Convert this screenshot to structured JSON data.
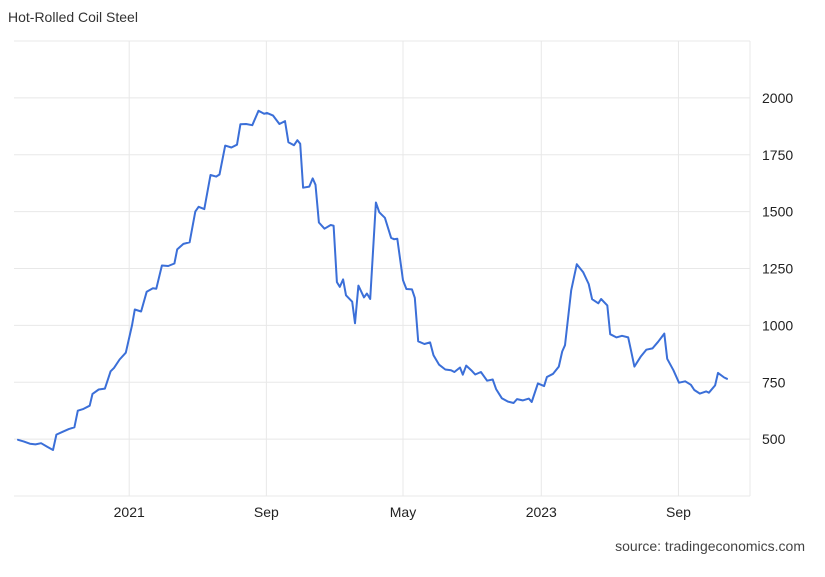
{
  "chart_data": {
    "type": "line",
    "title": "Hot-Rolled Coil Steel",
    "xlabel": "",
    "ylabel": "",
    "source": "source: tradingeconomics.com",
    "ylim": [
      250,
      2250
    ],
    "y_ticks": [
      500,
      750,
      1000,
      1250,
      1500,
      1750,
      2000
    ],
    "x_tick_labels": [
      "2021",
      "Sep",
      "May",
      "2023",
      "Sep"
    ],
    "x_tick_dates": [
      "2021-01-01",
      "2021-09-01",
      "2022-05-01",
      "2023-01-01",
      "2023-09-01"
    ],
    "xlim": [
      "2020-06-18",
      "2023-11-26"
    ],
    "grid": true,
    "y_axis_position": "right",
    "series": [
      {
        "name": "",
        "color": "#3b6fd8",
        "points": [
          [
            "2020-06-18",
            497
          ],
          [
            "2020-06-28",
            490
          ],
          [
            "2020-07-09",
            480
          ],
          [
            "2020-07-19",
            477
          ],
          [
            "2020-07-29",
            482
          ],
          [
            "2020-08-09",
            466
          ],
          [
            "2020-08-19",
            452
          ],
          [
            "2020-08-25",
            520
          ],
          [
            "2020-09-05",
            532
          ],
          [
            "2020-09-16",
            544
          ],
          [
            "2020-09-26",
            552
          ],
          [
            "2020-10-02",
            625
          ],
          [
            "2020-10-12",
            633
          ],
          [
            "2020-10-23",
            647
          ],
          [
            "2020-10-28",
            699
          ],
          [
            "2020-11-08",
            718
          ],
          [
            "2020-11-19",
            722
          ],
          [
            "2020-11-29",
            798
          ],
          [
            "2020-12-05",
            813
          ],
          [
            "2020-12-15",
            850
          ],
          [
            "2020-12-26",
            880
          ],
          [
            "2021-01-06",
            1000
          ],
          [
            "2021-01-11",
            1070
          ],
          [
            "2021-01-22",
            1061
          ],
          [
            "2021-02-01",
            1148
          ],
          [
            "2021-02-12",
            1163
          ],
          [
            "2021-02-18",
            1161
          ],
          [
            "2021-02-28",
            1263
          ],
          [
            "2021-03-11",
            1261
          ],
          [
            "2021-03-22",
            1272
          ],
          [
            "2021-03-27",
            1334
          ],
          [
            "2021-04-07",
            1358
          ],
          [
            "2021-04-18",
            1365
          ],
          [
            "2021-04-28",
            1500
          ],
          [
            "2021-05-04",
            1521
          ],
          [
            "2021-05-14",
            1511
          ],
          [
            "2021-05-25",
            1661
          ],
          [
            "2021-06-04",
            1654
          ],
          [
            "2021-06-10",
            1663
          ],
          [
            "2021-06-20",
            1790
          ],
          [
            "2021-07-01",
            1782
          ],
          [
            "2021-07-11",
            1794
          ],
          [
            "2021-07-17",
            1884
          ],
          [
            "2021-07-27",
            1885
          ],
          [
            "2021-08-07",
            1880
          ],
          [
            "2021-08-18",
            1943
          ],
          [
            "2021-08-28",
            1930
          ],
          [
            "2021-09-02",
            1934
          ],
          [
            "2021-09-13",
            1922
          ],
          [
            "2021-09-24",
            1885
          ],
          [
            "2021-10-04",
            1898
          ],
          [
            "2021-10-10",
            1805
          ],
          [
            "2021-10-20",
            1792
          ],
          [
            "2021-10-26",
            1814
          ],
          [
            "2021-10-31",
            1798
          ],
          [
            "2021-11-05",
            1605
          ],
          [
            "2021-11-16",
            1610
          ],
          [
            "2021-11-22",
            1646
          ],
          [
            "2021-11-27",
            1618
          ],
          [
            "2021-12-03",
            1452
          ],
          [
            "2021-12-13",
            1425
          ],
          [
            "2021-12-24",
            1441
          ],
          [
            "2021-12-29",
            1438
          ],
          [
            "2022-01-04",
            1190
          ],
          [
            "2022-01-09",
            1169
          ],
          [
            "2022-01-15",
            1202
          ],
          [
            "2022-01-20",
            1132
          ],
          [
            "2022-01-31",
            1104
          ],
          [
            "2022-02-05",
            1009
          ],
          [
            "2022-02-11",
            1175
          ],
          [
            "2022-02-21",
            1123
          ],
          [
            "2022-02-26",
            1140
          ],
          [
            "2022-03-04",
            1116
          ],
          [
            "2022-03-14",
            1540
          ],
          [
            "2022-03-20",
            1497
          ],
          [
            "2022-03-30",
            1473
          ],
          [
            "2022-04-10",
            1385
          ],
          [
            "2022-04-15",
            1379
          ],
          [
            "2022-04-21",
            1381
          ],
          [
            "2022-05-01",
            1198
          ],
          [
            "2022-05-07",
            1160
          ],
          [
            "2022-05-17",
            1158
          ],
          [
            "2022-05-22",
            1121
          ],
          [
            "2022-05-28",
            930
          ],
          [
            "2022-06-08",
            918
          ],
          [
            "2022-06-18",
            925
          ],
          [
            "2022-06-24",
            869
          ],
          [
            "2022-07-04",
            827
          ],
          [
            "2022-07-15",
            806
          ],
          [
            "2022-07-25",
            803
          ],
          [
            "2022-07-31",
            795
          ],
          [
            "2022-08-10",
            815
          ],
          [
            "2022-08-15",
            783
          ],
          [
            "2022-08-21",
            823
          ],
          [
            "2022-08-31",
            800
          ],
          [
            "2022-09-06",
            784
          ],
          [
            "2022-09-16",
            795
          ],
          [
            "2022-09-27",
            757
          ],
          [
            "2022-10-07",
            762
          ],
          [
            "2022-10-13",
            720
          ],
          [
            "2022-10-23",
            680
          ],
          [
            "2022-11-03",
            665
          ],
          [
            "2022-11-13",
            659
          ],
          [
            "2022-11-19",
            676
          ],
          [
            "2022-11-29",
            670
          ],
          [
            "2022-12-10",
            678
          ],
          [
            "2022-12-15",
            663
          ],
          [
            "2022-12-26",
            745
          ],
          [
            "2023-01-06",
            733
          ],
          [
            "2023-01-11",
            773
          ],
          [
            "2023-01-22",
            787
          ],
          [
            "2023-02-01",
            819
          ],
          [
            "2023-02-07",
            885
          ],
          [
            "2023-02-12",
            913
          ],
          [
            "2023-02-23",
            1154
          ],
          [
            "2023-03-05",
            1269
          ],
          [
            "2023-03-16",
            1234
          ],
          [
            "2023-03-26",
            1182
          ],
          [
            "2023-04-01",
            1115
          ],
          [
            "2023-04-12",
            1097
          ],
          [
            "2023-04-17",
            1116
          ],
          [
            "2023-04-28",
            1088
          ],
          [
            "2023-05-03",
            961
          ],
          [
            "2023-05-14",
            947
          ],
          [
            "2023-05-24",
            954
          ],
          [
            "2023-06-04",
            947
          ],
          [
            "2023-06-09",
            890
          ],
          [
            "2023-06-15",
            819
          ],
          [
            "2023-06-26",
            862
          ],
          [
            "2023-07-06",
            893
          ],
          [
            "2023-07-17",
            899
          ],
          [
            "2023-07-27",
            928
          ],
          [
            "2023-08-07",
            964
          ],
          [
            "2023-08-12",
            853
          ],
          [
            "2023-08-23",
            803
          ],
          [
            "2023-09-02",
            748
          ],
          [
            "2023-09-13",
            754
          ],
          [
            "2023-09-23",
            739
          ],
          [
            "2023-09-29",
            716
          ],
          [
            "2023-10-09",
            700
          ],
          [
            "2023-10-20",
            710
          ],
          [
            "2023-10-25",
            704
          ],
          [
            "2023-11-05",
            736
          ],
          [
            "2023-11-10",
            791
          ],
          [
            "2023-11-21",
            771
          ],
          [
            "2023-11-26",
            765
          ]
        ]
      }
    ]
  }
}
